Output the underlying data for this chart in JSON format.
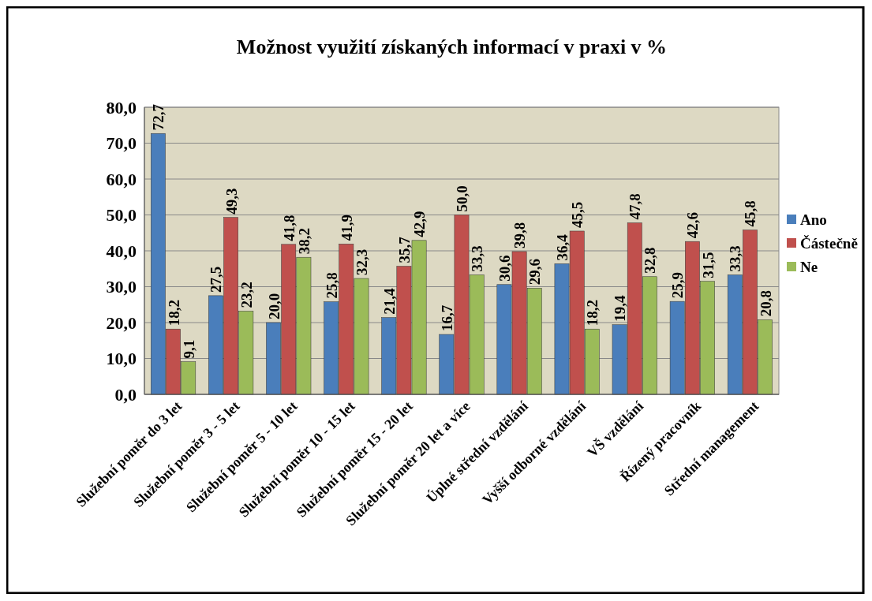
{
  "chart_data": {
    "type": "bar",
    "title": "Možnost využití získaných informací v praxi v %",
    "categories": [
      "Služební poměr do 3 let",
      "Služební poměr 3 - 5 let",
      "Služební poměr 5 - 10 let",
      "Služební poměr 10 - 15 let",
      "Služební poměr 15 - 20 let",
      "Služební poměr 20 let a více",
      "Úplné střední vzdělání",
      "Vyšší odborné vzdělání",
      "VŠ vzdělání",
      "Řízený pracovník",
      "Střední management"
    ],
    "series": [
      {
        "name": "Ano",
        "color": "#4a7ebb",
        "values": [
          72.7,
          27.5,
          20.0,
          25.8,
          21.4,
          16.7,
          30.6,
          36.4,
          19.4,
          25.9,
          33.3
        ],
        "value_labels": [
          "72,7",
          "27,5",
          "20,0",
          "25,8",
          "21,4",
          "16,7",
          "30,6",
          "36,4",
          "19,4",
          "25,9",
          "33,3"
        ]
      },
      {
        "name": "Částečně",
        "color": "#c0504d",
        "values": [
          18.2,
          49.3,
          41.8,
          41.9,
          35.7,
          50.0,
          39.8,
          45.5,
          47.8,
          42.6,
          45.8
        ],
        "value_labels": [
          "18,2",
          "49,3",
          "41,8",
          "41,9",
          "35,7",
          "50,0",
          "39,8",
          "45,5",
          "47,8",
          "42,6",
          "45,8"
        ]
      },
      {
        "name": "Ne",
        "color": "#9bbb59",
        "values": [
          9.1,
          23.2,
          38.2,
          32.3,
          42.9,
          33.3,
          29.6,
          18.2,
          32.8,
          31.5,
          20.8
        ],
        "value_labels": [
          "9,1",
          "23,2",
          "38,2",
          "32,3",
          "42,9",
          "33,3",
          "29,6",
          "18,2",
          "32,8",
          "31,5",
          "20,8"
        ]
      }
    ],
    "ylim": [
      0,
      80
    ],
    "yticks": [
      {
        "value": 0,
        "label": "0,0"
      },
      {
        "value": 10,
        "label": "10,0"
      },
      {
        "value": 20,
        "label": "20,0"
      },
      {
        "value": 30,
        "label": "30,0"
      },
      {
        "value": 40,
        "label": "40,0"
      },
      {
        "value": 50,
        "label": "50,0"
      },
      {
        "value": 60,
        "label": "60,0"
      },
      {
        "value": 70,
        "label": "70,0"
      },
      {
        "value": 80,
        "label": "80,0"
      }
    ],
    "grid": "y",
    "legend": "right"
  }
}
